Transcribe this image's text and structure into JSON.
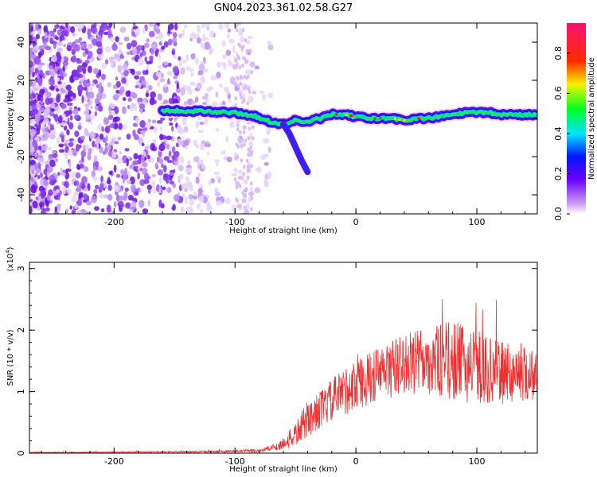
{
  "title": "GN04.2023.361.02.58.G27",
  "colors": {
    "snr_line": "#f03030",
    "ridge_core": "#e8202a",
    "band_edge": "#6a0fe0",
    "speckle_light": "#dcbcf5"
  },
  "chart_data": [
    {
      "type": "heatmap",
      "xlabel": "Height of straight line (km)",
      "ylabel": "Frequency (Hz)",
      "xlim": [
        -270,
        150
      ],
      "ylim": [
        -50,
        50
      ],
      "x_ticks": [
        -200,
        -100,
        0,
        100
      ],
      "y_ticks": [
        -40,
        -20,
        0,
        20,
        40
      ],
      "grid": false,
      "colorbar": {
        "label": "Normalized spectral amplitude",
        "range": [
          0,
          0.95
        ],
        "ticks": [
          "0.0",
          "0.2",
          "0.4",
          "0.6",
          "0.8"
        ],
        "colormap": "rainbow (white-violet-blue-cyan-green-yellow-red-pink)"
      },
      "ridge": {
        "x": [
          -160,
          -140,
          -120,
          -100,
          -90,
          -80,
          -70,
          -60,
          -50,
          -40,
          -30,
          -20,
          -10,
          0,
          10,
          20,
          30,
          40,
          50,
          60,
          70,
          80,
          90,
          100,
          110,
          120,
          130,
          140,
          150
        ],
        "y": [
          4,
          4,
          3.5,
          3,
          2,
          0.5,
          -2,
          -3,
          -1,
          -2,
          0,
          2,
          2,
          1,
          0,
          0,
          0,
          -1,
          0,
          0,
          1,
          2,
          3,
          3,
          3,
          2,
          2,
          2,
          2
        ]
      },
      "branch": {
        "x": [
          -60,
          -55,
          -50,
          -45,
          -40
        ],
        "y": [
          -3,
          -8,
          -15,
          -22,
          -28
        ]
      }
    },
    {
      "type": "line",
      "xlabel": "Height of straight line (km)",
      "ylabel": "SNR (10 * v/v)",
      "y_multiplier": "(x10^4)",
      "xlim": [
        -270,
        150
      ],
      "ylim": [
        0,
        3.1
      ],
      "x_ticks": [
        -200,
        -100,
        0,
        100
      ],
      "y_ticks": [
        0,
        1,
        2,
        3
      ],
      "grid": false,
      "series": [
        {
          "envelope_x": [
            -270,
            -150,
            -100,
            -80,
            -70,
            -60,
            -50,
            -40,
            -30,
            -20,
            -10,
            0,
            20,
            40,
            60,
            80,
            100,
            120,
            140,
            150
          ],
          "envelope_mean": [
            0.01,
            0.02,
            0.03,
            0.04,
            0.08,
            0.15,
            0.3,
            0.55,
            0.7,
            0.85,
            1.0,
            1.1,
            1.3,
            1.45,
            1.5,
            1.5,
            1.4,
            1.3,
            1.3,
            1.3
          ],
          "envelope_spread": [
            0.005,
            0.01,
            0.02,
            0.03,
            0.05,
            0.1,
            0.2,
            0.3,
            0.3,
            0.35,
            0.4,
            0.4,
            0.45,
            0.5,
            0.55,
            0.65,
            0.6,
            0.5,
            0.45,
            0.45
          ]
        }
      ]
    }
  ]
}
